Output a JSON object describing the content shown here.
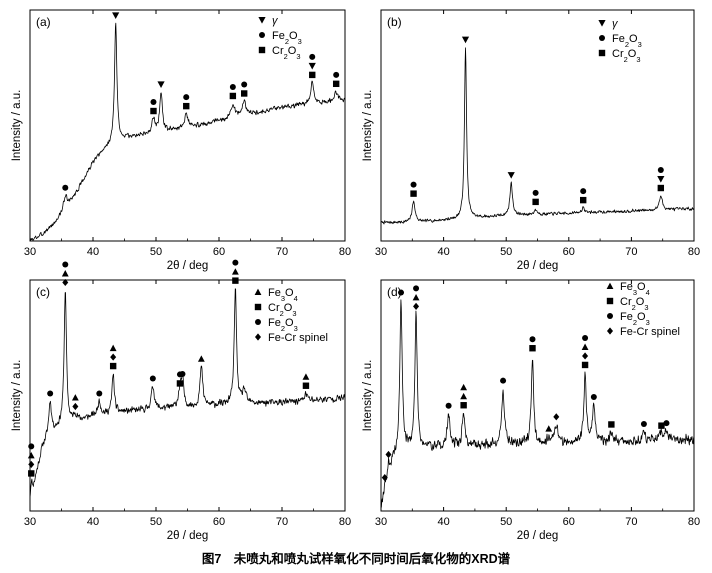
{
  "figure": {
    "caption": "图7　未喷丸和喷丸试样氧化不同时间后氧化物的XRD谱",
    "symbols": {
      "gamma": "▼",
      "fe2o3": "●",
      "cr2o3": "■",
      "fe3o4": "▲",
      "spinel": "◆"
    }
  },
  "chart_data": [
    {
      "id": "a",
      "type": "line",
      "panel_label": "(a)",
      "xlabel": "2θ / deg",
      "ylabel": "Intensity / a.u.",
      "xlim": [
        30,
        80
      ],
      "xticks": [
        30,
        40,
        50,
        60,
        70,
        80
      ],
      "ylim": [
        0,
        100
      ],
      "legend": [
        {
          "symbol": "gamma",
          "label": "γ"
        },
        {
          "symbol": "fe2o3",
          "label": "Fe2O3"
        },
        {
          "symbol": "cr2o3",
          "label": "Cr2O3"
        }
      ],
      "baseline": [
        [
          30,
          0
        ],
        [
          32,
          3
        ],
        [
          34,
          8
        ],
        [
          36,
          15
        ],
        [
          38,
          24
        ],
        [
          40,
          34
        ],
        [
          42,
          40
        ],
        [
          44,
          44
        ],
        [
          46,
          45
        ],
        [
          48,
          46
        ],
        [
          50,
          47
        ],
        [
          55,
          49
        ],
        [
          60,
          52
        ],
        [
          65,
          55
        ],
        [
          70,
          58
        ],
        [
          75,
          59.5
        ],
        [
          80,
          61
        ]
      ],
      "noise": 1.2,
      "seed": 3,
      "peaks": [
        {
          "x": 35.6,
          "h": 6,
          "w": 0.35,
          "markers": [
            "fe2o3"
          ]
        },
        {
          "x": 43.6,
          "h": 51,
          "w": 0.22,
          "markers": [
            "gamma"
          ]
        },
        {
          "x": 49.6,
          "h": 6,
          "w": 0.3,
          "markers": [
            "fe2o3",
            "cr2o3"
          ]
        },
        {
          "x": 50.8,
          "h": 17,
          "w": 0.25,
          "markers": [
            "gamma"
          ]
        },
        {
          "x": 54.8,
          "h": 6,
          "w": 0.35,
          "markers": [
            "fe2o3",
            "cr2o3"
          ]
        },
        {
          "x": 62.2,
          "h": 6,
          "w": 0.35,
          "markers": [
            "fe2o3",
            "cr2o3"
          ]
        },
        {
          "x": 64.0,
          "h": 6,
          "w": 0.35,
          "markers": [
            "fe2o3",
            "cr2o3"
          ]
        },
        {
          "x": 74.8,
          "h": 9,
          "w": 0.3,
          "markers": [
            "fe2o3",
            "gamma",
            "cr2o3"
          ]
        },
        {
          "x": 78.6,
          "h": 4,
          "w": 0.3,
          "markers": [
            "fe2o3",
            "cr2o3"
          ]
        }
      ]
    },
    {
      "id": "b",
      "type": "line",
      "panel_label": "(b)",
      "xlabel": "2θ / deg",
      "ylabel": "Intensity / a.u.",
      "xlim": [
        30,
        80
      ],
      "xticks": [
        30,
        40,
        50,
        60,
        70,
        80
      ],
      "ylim": [
        0,
        100
      ],
      "legend": [
        {
          "symbol": "gamma",
          "label": "γ"
        },
        {
          "symbol": "fe2o3",
          "label": "Fe2O3"
        },
        {
          "symbol": "cr2o3",
          "label": "Cr2O3"
        }
      ],
      "baseline": [
        [
          30,
          8
        ],
        [
          35,
          8
        ],
        [
          40,
          9
        ],
        [
          45,
          10
        ],
        [
          50,
          11
        ],
        [
          55,
          11.5
        ],
        [
          60,
          12
        ],
        [
          65,
          12.5
        ],
        [
          70,
          13
        ],
        [
          75,
          13.5
        ],
        [
          80,
          14
        ]
      ],
      "noise": 0.8,
      "seed": 7,
      "peaks": [
        {
          "x": 35.2,
          "h": 9,
          "w": 0.3,
          "markers": [
            "fe2o3",
            "cr2o3"
          ]
        },
        {
          "x": 43.5,
          "h": 74,
          "w": 0.2,
          "markers": [
            "gamma"
          ]
        },
        {
          "x": 50.8,
          "h": 14,
          "w": 0.25,
          "markers": [
            "gamma"
          ]
        },
        {
          "x": 54.7,
          "h": 2,
          "w": 0.3,
          "markers": [
            "fe2o3",
            "cr2o3"
          ]
        },
        {
          "x": 62.3,
          "h": 2,
          "w": 0.3,
          "markers": [
            "fe2o3",
            "cr2o3"
          ]
        },
        {
          "x": 74.7,
          "h": 6,
          "w": 0.3,
          "markers": [
            "fe2o3",
            "gamma",
            "cr2o3"
          ]
        }
      ]
    },
    {
      "id": "c",
      "type": "line",
      "panel_label": "(c)",
      "xlabel": "2θ / deg",
      "ylabel": "Intensity / a.u.",
      "xlim": [
        30,
        80
      ],
      "xticks": [
        30,
        40,
        50,
        60,
        70,
        80
      ],
      "ylim": [
        0,
        100
      ],
      "legend": [
        {
          "symbol": "fe3o4",
          "label": "Fe3O4"
        },
        {
          "symbol": "cr2o3",
          "label": "Cr2O3"
        },
        {
          "symbol": "fe2o3",
          "label": "Fe2O3"
        },
        {
          "symbol": "spinel",
          "label": "Fe-Cr spinel"
        }
      ],
      "baseline": [
        [
          30,
          2
        ],
        [
          31,
          16
        ],
        [
          32,
          28
        ],
        [
          33,
          33
        ],
        [
          35,
          37
        ],
        [
          40,
          41
        ],
        [
          45,
          43
        ],
        [
          50,
          44
        ],
        [
          55,
          45
        ],
        [
          60,
          46
        ],
        [
          65,
          46.5
        ],
        [
          70,
          47
        ],
        [
          75,
          48
        ],
        [
          80,
          49
        ]
      ],
      "noise": 1.8,
      "seed": 11,
      "peaks": [
        {
          "x": 30.2,
          "h": 8,
          "w": 0.2,
          "markers": [
            "fe2o3",
            "fe3o4",
            "spinel",
            "cr2o3"
          ]
        },
        {
          "x": 33.2,
          "h": 14,
          "w": 0.25,
          "markers": [
            "fe2o3"
          ]
        },
        {
          "x": 35.6,
          "h": 58,
          "w": 0.22,
          "markers": [
            "fe2o3",
            "fe3o4",
            "spinel"
          ]
        },
        {
          "x": 37.2,
          "h": 3,
          "w": 0.3,
          "markers": [
            "fe3o4",
            "spinel"
          ]
        },
        {
          "x": 41.0,
          "h": 6,
          "w": 0.3,
          "markers": [
            "fe2o3"
          ]
        },
        {
          "x": 43.2,
          "h": 17,
          "w": 0.22,
          "markers": [
            "fe3o4",
            "spinel",
            "cr2o3"
          ]
        },
        {
          "x": 49.5,
          "h": 10,
          "w": 0.3,
          "markers": [
            "fe2o3"
          ]
        },
        {
          "x": 53.8,
          "h": 7,
          "w": 0.3,
          "markers": [
            "fe2o3",
            "cr2o3"
          ]
        },
        {
          "x": 54.2,
          "h": 11,
          "w": 0.25,
          "markers": [
            "fe2o3"
          ]
        },
        {
          "x": 57.2,
          "h": 17,
          "w": 0.25,
          "markers": [
            "fe3o4"
          ]
        },
        {
          "x": 62.6,
          "h": 50,
          "w": 0.22,
          "markers": [
            "fe2o3",
            "fe3o4",
            "cr2o3"
          ]
        },
        {
          "x": 64.0,
          "h": 6,
          "w": 0.3,
          "markers": []
        },
        {
          "x": 73.8,
          "h": 3,
          "w": 0.3,
          "markers": [
            "fe3o4",
            "cr2o3"
          ]
        }
      ]
    },
    {
      "id": "d",
      "type": "line",
      "panel_label": "(d)",
      "xlabel": "2θ / deg",
      "ylabel": "Intensity / a.u.",
      "xlim": [
        30,
        80
      ],
      "xticks": [
        30,
        40,
        50,
        60,
        70,
        80
      ],
      "ylim": [
        0,
        100
      ],
      "legend": [
        {
          "symbol": "fe3o4",
          "label": "Fe3O4"
        },
        {
          "symbol": "cr2o3",
          "label": "Cr2O3"
        },
        {
          "symbol": "fe2o3",
          "label": "Fe2O3"
        },
        {
          "symbol": "spinel",
          "label": "Fe-Cr spinel"
        }
      ],
      "baseline": [
        [
          30,
          2
        ],
        [
          30.6,
          6
        ],
        [
          31.2,
          14
        ],
        [
          32,
          22
        ],
        [
          33,
          26
        ],
        [
          35,
          27
        ],
        [
          40,
          28
        ],
        [
          45,
          28.5
        ],
        [
          50,
          29
        ],
        [
          55,
          29
        ],
        [
          60,
          29.5
        ],
        [
          65,
          30
        ],
        [
          70,
          30
        ],
        [
          75,
          30.5
        ],
        [
          80,
          31
        ]
      ],
      "noise": 2.6,
      "seed": 19,
      "peaks": [
        {
          "x": 30.6,
          "h": 5,
          "w": 0.2,
          "markers": [
            "spinel"
          ]
        },
        {
          "x": 31.2,
          "h": 7,
          "w": 0.2,
          "markers": [
            "spinel"
          ]
        },
        {
          "x": 33.2,
          "h": 65,
          "w": 0.22,
          "markers": [
            "fe2o3"
          ]
        },
        {
          "x": 35.6,
          "h": 58,
          "w": 0.22,
          "markers": [
            "fe2o3",
            "fe3o4",
            "spinel"
          ]
        },
        {
          "x": 40.8,
          "h": 14,
          "w": 0.25,
          "markers": [
            "fe2o3"
          ]
        },
        {
          "x": 43.2,
          "h": 14,
          "w": 0.25,
          "markers": [
            "fe3o4",
            "fe3o4",
            "cr2o3"
          ]
        },
        {
          "x": 49.5,
          "h": 24,
          "w": 0.25,
          "markers": [
            "fe2o3"
          ]
        },
        {
          "x": 54.2,
          "h": 38,
          "w": 0.22,
          "markers": [
            "fe2o3",
            "cr2o3"
          ]
        },
        {
          "x": 56.8,
          "h": 3,
          "w": 0.3,
          "markers": [
            "fe3o4"
          ]
        },
        {
          "x": 58.0,
          "h": 8,
          "w": 0.3,
          "markers": [
            "spinel"
          ]
        },
        {
          "x": 62.6,
          "h": 30,
          "w": 0.22,
          "markers": [
            "fe2o3",
            "fe3o4",
            "spinel",
            "cr2o3"
          ]
        },
        {
          "x": 64.0,
          "h": 16,
          "w": 0.25,
          "markers": [
            "fe2o3"
          ]
        },
        {
          "x": 66.8,
          "h": 4,
          "w": 0.3,
          "markers": [
            "cr2o3"
          ]
        },
        {
          "x": 72.0,
          "h": 4,
          "w": 0.3,
          "markers": [
            "fe2o3"
          ]
        },
        {
          "x": 74.8,
          "h": 3,
          "w": 0.3,
          "markers": [
            "cr2o3"
          ]
        },
        {
          "x": 75.6,
          "h": 4,
          "w": 0.3,
          "markers": [
            "fe2o3"
          ]
        }
      ]
    }
  ]
}
